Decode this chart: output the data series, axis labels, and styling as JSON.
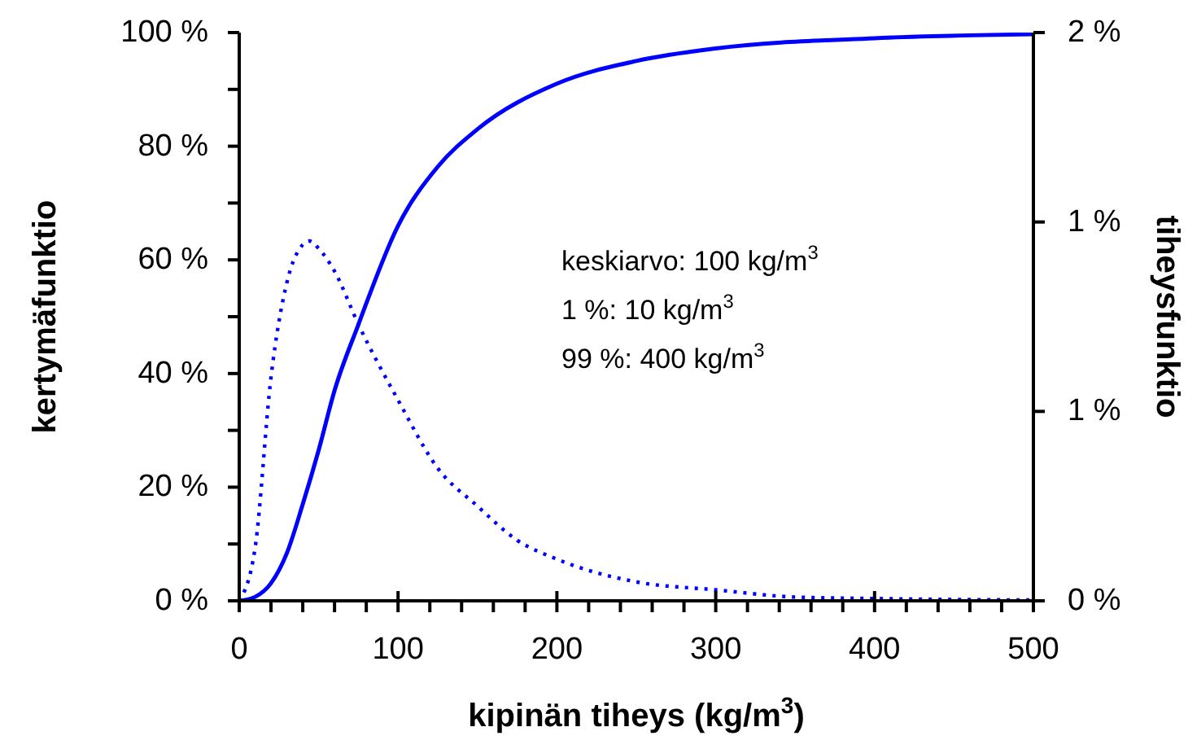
{
  "chart_data": {
    "type": "line",
    "xlabel": "kipinän tiheys (kg/m$^{3}$)",
    "ylabel": "kertymäfunktio",
    "y2label": "tiheysfunktio",
    "annotations": [
      "keskiarvo: 100 kg/m$^{3}$",
      "1 %: 10 kg/m$^{3}$",
      "99 %: 400 kg/m$^{3}$"
    ],
    "xlim": [
      0,
      500
    ],
    "xticks": [
      0,
      {
        "value": 20,
        "label": null
      },
      {
        "value": 40,
        "label": null
      },
      {
        "value": 60,
        "label": null
      },
      {
        "value": 80,
        "label": null
      },
      100,
      {
        "value": 120,
        "label": null
      },
      {
        "value": 140,
        "label": null
      },
      {
        "value": 160,
        "label": null
      },
      {
        "value": 180,
        "label": null
      },
      200,
      {
        "value": 220,
        "label": null
      },
      {
        "value": 240,
        "label": null
      },
      {
        "value": 260,
        "label": null
      },
      {
        "value": 280,
        "label": null
      },
      300,
      {
        "value": 320,
        "label": null
      },
      {
        "value": 340,
        "label": null
      },
      {
        "value": 360,
        "label": null
      },
      {
        "value": 380,
        "label": null
      },
      400,
      {
        "value": 420,
        "label": null
      },
      {
        "value": 440,
        "label": null
      },
      {
        "value": 460,
        "label": null
      },
      {
        "value": 480,
        "label": null
      },
      500
    ],
    "ylim": [
      0,
      100
    ],
    "yticks": [
      {
        "value": 0,
        "label": "0 %"
      },
      {
        "value": 10,
        "label": null
      },
      {
        "value": 20,
        "label": "20 %"
      },
      {
        "value": 30,
        "label": null
      },
      {
        "value": 40,
        "label": "40 %"
      },
      {
        "value": 50,
        "label": null
      },
      {
        "value": 60,
        "label": "60 %"
      },
      {
        "value": 70,
        "label": null
      },
      {
        "value": 80,
        "label": "80 %"
      },
      {
        "value": 90,
        "label": null
      },
      {
        "value": 100,
        "label": "100 %"
      }
    ],
    "y2lim": [
      0,
      1.5
    ],
    "y2ticks": [
      {
        "value": 0,
        "label": "0 %"
      },
      {
        "value": 0.5,
        "label": "1 %"
      },
      {
        "value": 1,
        "label": "1 %"
      },
      {
        "value": 1.5,
        "label": "2 %"
      }
    ],
    "marker": "none",
    "series": [
      {
        "color": "#0000ff",
        "line_style": "solid",
        "x": [
          0,
          10,
          20,
          30,
          40,
          50,
          60,
          75,
          100,
          125,
          150,
          200,
          250,
          300,
          400,
          500
        ],
        "values": [
          0,
          0.7,
          3.1,
          8.4,
          17,
          26.5,
          37,
          48.6,
          66,
          76.4,
          83,
          91,
          95,
          97.2,
          99,
          99.7
        ]
      },
      {
        "color": "#0000ff",
        "line_style": "dotted",
        "axis": "y2",
        "x": [
          0,
          10,
          20,
          30,
          40,
          44,
          50,
          60,
          75,
          100,
          125,
          150,
          175,
          200,
          250,
          300,
          350,
          400,
          500
        ],
        "values": [
          0,
          0.14,
          0.59,
          0.84,
          0.94,
          0.95,
          0.93,
          0.87,
          0.73,
          0.53,
          0.35,
          0.25,
          0.16,
          0.11,
          0.05,
          0.029,
          0.01,
          0.006,
          0.002
        ]
      }
    ]
  }
}
